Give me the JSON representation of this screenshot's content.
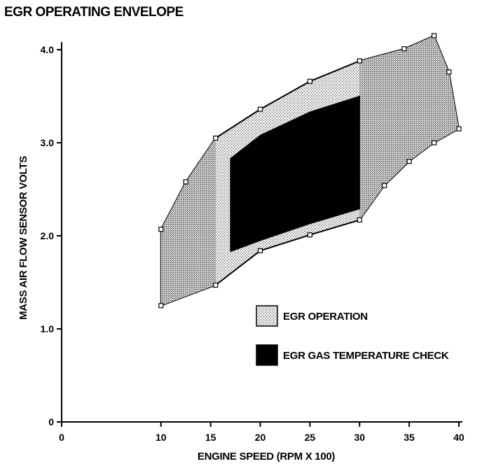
{
  "chart_data": {
    "type": "area",
    "title": "EGR OPERATING ENVELOPE",
    "xlabel": "ENGINE SPEED (RPM X 100)",
    "ylabel": "MASS AIR FLOW SENSOR VOLTS",
    "xlim": [
      0,
      40
    ],
    "ylim": [
      0,
      4.0
    ],
    "xticks": [
      0,
      10,
      15,
      20,
      25,
      30,
      35,
      40
    ],
    "yticks": [
      0,
      1.0,
      2.0,
      3.0,
      4.0
    ],
    "xtick_labels": [
      "0",
      "10",
      "15",
      "20",
      "25",
      "30",
      "35",
      "40"
    ],
    "ytick_labels": [
      "0",
      "1.0",
      "2.0",
      "3.0",
      "4.0"
    ],
    "grid": false,
    "legend_position": "lower-right",
    "series": [
      {
        "name": "EGR OPERATION",
        "fill": "#cccccc",
        "pattern": "stipple",
        "points": [
          [
            10,
            1.25
          ],
          [
            15.5,
            1.47
          ],
          [
            20,
            1.84
          ],
          [
            25,
            2.01
          ],
          [
            30,
            2.17
          ],
          [
            32.5,
            2.54
          ],
          [
            35,
            2.8
          ],
          [
            37.5,
            3.0
          ],
          [
            40,
            3.15
          ],
          [
            39,
            3.76
          ],
          [
            37.5,
            4.15
          ],
          [
            34.5,
            4.01
          ],
          [
            30,
            3.88
          ],
          [
            25,
            3.66
          ],
          [
            20,
            3.36
          ],
          [
            15.5,
            3.05
          ],
          [
            12.5,
            2.58
          ],
          [
            10,
            2.07
          ]
        ]
      },
      {
        "name": "EGR GAS TEMPERATURE CHECK",
        "fill": "#000000",
        "pattern": "solid",
        "points": [
          [
            17,
            1.83
          ],
          [
            20,
            1.95
          ],
          [
            25,
            2.13
          ],
          [
            30,
            2.29
          ],
          [
            30,
            3.5
          ],
          [
            25,
            3.33
          ],
          [
            20,
            3.08
          ],
          [
            17,
            2.83
          ]
        ]
      }
    ]
  }
}
